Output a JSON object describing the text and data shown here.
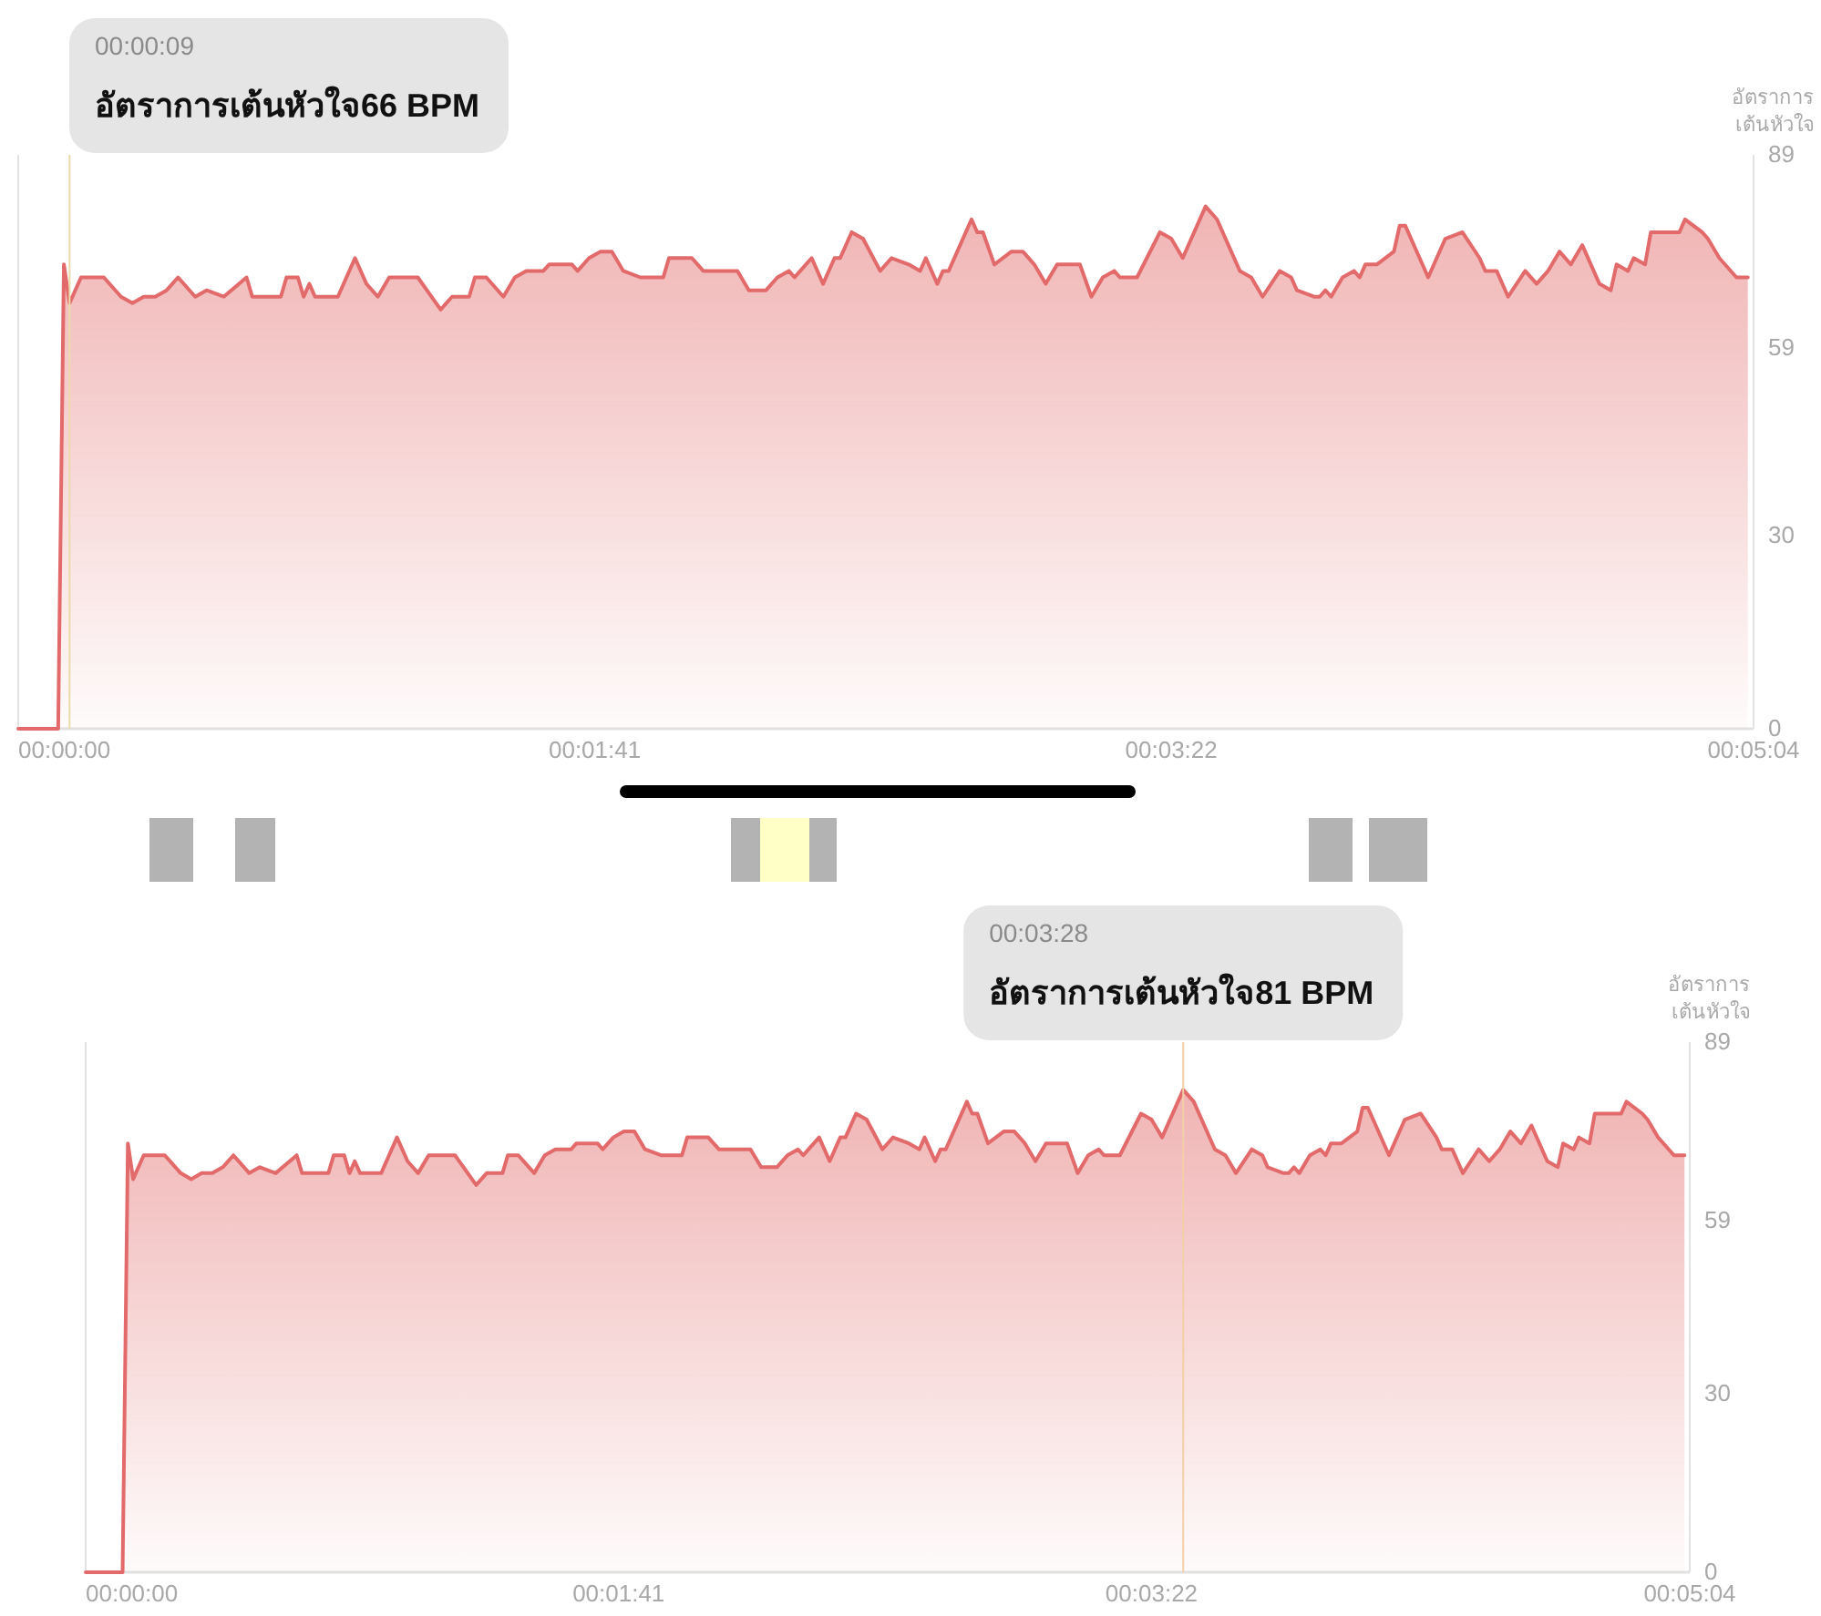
{
  "chart_data": [
    {
      "type": "area",
      "color": "#e26a6a",
      "x": [
        0,
        7,
        8,
        9,
        11,
        15,
        18,
        20,
        22,
        24,
        26,
        28,
        31,
        33,
        36,
        40,
        41,
        46,
        47,
        49,
        50,
        51,
        52,
        56,
        59,
        61,
        63,
        65,
        70,
        74,
        76,
        79,
        80,
        82,
        85,
        87,
        89,
        92,
        93,
        95,
        97,
        98,
        100,
        102,
        104,
        106,
        109,
        113,
        114,
        118,
        120,
        126,
        128,
        131,
        133,
        135,
        136,
        137,
        139,
        141,
        143,
        144,
        146,
        148,
        151,
        153,
        156,
        158,
        159,
        161,
        162,
        163,
        167,
        168,
        169,
        171,
        174,
        176,
        178,
        180,
        182,
        186,
        188,
        190,
        192,
        193,
        196,
        200,
        202,
        204,
        208,
        210,
        214,
        216,
        218,
        221,
        223,
        224,
        227,
        228,
        229,
        230,
        232,
        234,
        235,
        236,
        238,
        241,
        242,
        243,
        247,
        250,
        253,
        256,
        257,
        259,
        261,
        264,
        266,
        268,
        270,
        272,
        274,
        277,
        279,
        280,
        282,
        283,
        285,
        286,
        291,
        292,
        295,
        296,
        298,
        301,
        302,
        303
      ],
      "values": [
        0,
        0,
        72,
        66,
        70,
        70,
        67,
        66,
        67,
        67,
        68,
        70,
        67,
        68,
        67,
        70,
        67,
        67,
        70,
        70,
        67,
        69,
        67,
        67,
        73,
        69,
        67,
        70,
        70,
        65,
        67,
        67,
        70,
        70,
        67,
        70,
        71,
        71,
        72,
        72,
        72,
        71,
        73,
        74,
        74,
        71,
        70,
        70,
        73,
        73,
        71,
        71,
        68,
        68,
        70,
        71,
        70,
        71,
        73,
        69,
        73,
        73,
        77,
        76,
        71,
        73,
        72,
        71,
        73,
        69,
        71,
        71,
        79,
        77,
        77,
        72,
        74,
        74,
        72,
        69,
        72,
        72,
        67,
        70,
        71,
        70,
        70,
        77,
        76,
        73,
        81,
        79,
        71,
        70,
        67,
        71,
        70,
        68,
        67,
        67,
        68,
        67,
        70,
        71,
        70,
        72,
        72,
        74,
        78,
        78,
        70,
        76,
        77,
        73,
        71,
        71,
        67,
        71,
        69,
        71,
        74,
        72,
        75,
        69,
        68,
        72,
        71,
        73,
        72,
        77,
        77,
        79,
        77,
        76,
        73,
        70,
        70,
        70
      ],
      "xlim": [
        0,
        304
      ],
      "xticks": [
        {
          "value": 0,
          "label": "00:00:00"
        },
        {
          "value": 101,
          "label": "00:01:41"
        },
        {
          "value": 202,
          "label": "00:03:22"
        },
        {
          "value": 304,
          "label": "00:05:04"
        }
      ],
      "ylim": [
        0,
        89
      ],
      "yticks": [
        0,
        30,
        59,
        89
      ],
      "ylabel": "อัตราการ\nเต้นหัวใจ",
      "ref_lines": [
        {
          "axis": "x",
          "value": 9,
          "color": "#eadba8"
        }
      ],
      "annotations": [
        "00:00:09",
        "อัตราการเต้นหัวใจ66 BPM"
      ]
    },
    {
      "type": "area",
      "color": "#e26a6a",
      "x": [
        0,
        7,
        8,
        9,
        11,
        15,
        18,
        20,
        22,
        24,
        26,
        28,
        31,
        33,
        36,
        40,
        41,
        46,
        47,
        49,
        50,
        51,
        52,
        56,
        59,
        61,
        63,
        65,
        70,
        74,
        76,
        79,
        80,
        82,
        85,
        87,
        89,
        92,
        93,
        95,
        97,
        98,
        100,
        102,
        104,
        106,
        109,
        113,
        114,
        118,
        120,
        126,
        128,
        131,
        133,
        135,
        136,
        137,
        139,
        141,
        143,
        144,
        146,
        148,
        151,
        153,
        156,
        158,
        159,
        161,
        162,
        163,
        167,
        168,
        169,
        171,
        174,
        176,
        178,
        180,
        182,
        186,
        188,
        190,
        192,
        193,
        196,
        200,
        202,
        204,
        208,
        210,
        214,
        216,
        218,
        221,
        223,
        224,
        227,
        228,
        229,
        230,
        232,
        234,
        235,
        236,
        238,
        241,
        242,
        243,
        247,
        250,
        253,
        256,
        257,
        259,
        261,
        264,
        266,
        268,
        270,
        272,
        274,
        277,
        279,
        280,
        282,
        283,
        285,
        286,
        291,
        292,
        295,
        296,
        298,
        301,
        302,
        303
      ],
      "values": [
        0,
        0,
        72,
        66,
        70,
        70,
        67,
        66,
        67,
        67,
        68,
        70,
        67,
        68,
        67,
        70,
        67,
        67,
        70,
        70,
        67,
        69,
        67,
        67,
        73,
        69,
        67,
        70,
        70,
        65,
        67,
        67,
        70,
        70,
        67,
        70,
        71,
        71,
        72,
        72,
        72,
        71,
        73,
        74,
        74,
        71,
        70,
        70,
        73,
        73,
        71,
        71,
        68,
        68,
        70,
        71,
        70,
        71,
        73,
        69,
        73,
        73,
        77,
        76,
        71,
        73,
        72,
        71,
        73,
        69,
        71,
        71,
        79,
        77,
        77,
        72,
        74,
        74,
        72,
        69,
        72,
        72,
        67,
        70,
        71,
        70,
        70,
        77,
        76,
        73,
        81,
        79,
        71,
        70,
        67,
        71,
        70,
        68,
        67,
        67,
        68,
        67,
        70,
        71,
        70,
        72,
        72,
        74,
        78,
        78,
        70,
        76,
        77,
        73,
        71,
        71,
        67,
        71,
        69,
        71,
        74,
        72,
        75,
        69,
        68,
        72,
        71,
        73,
        72,
        77,
        77,
        79,
        77,
        76,
        73,
        70,
        70,
        70
      ],
      "xlim": [
        0,
        304
      ],
      "xticks": [
        {
          "value": 0,
          "label": "00:00:00"
        },
        {
          "value": 101,
          "label": "00:01:41"
        },
        {
          "value": 202,
          "label": "00:03:22"
        },
        {
          "value": 304,
          "label": "00:05:04"
        }
      ],
      "ylim": [
        0,
        89
      ],
      "yticks": [
        0,
        30,
        59,
        89
      ],
      "ylabel": "อัตราการ\nเต้นหัวใจ",
      "ref_lines": [
        {
          "axis": "x",
          "value": 208,
          "color": "#f2cfa6"
        }
      ],
      "annotations": [
        "00:03:28",
        "อัตราการเต้นหัวใจ81 BPM"
      ]
    }
  ]
}
